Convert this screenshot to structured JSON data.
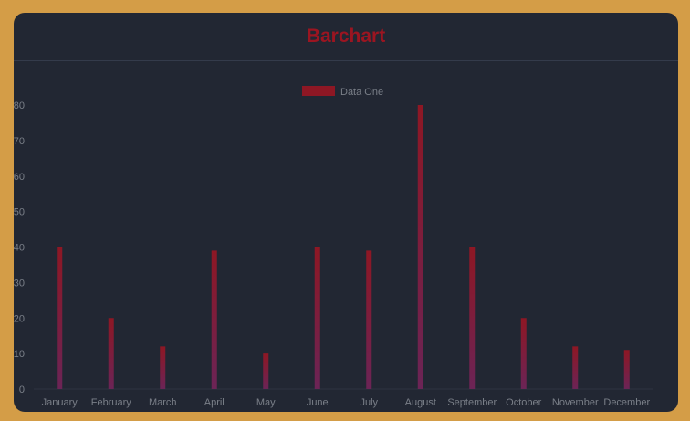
{
  "card": {
    "title": "Barchart"
  },
  "colors": {
    "background": "#d49d47",
    "card": "#222733",
    "title": "#9b1521",
    "bar_top": "#8e1724",
    "bar_bottom": "#6b2456",
    "axis_text": "#7a7f88"
  },
  "chart_data": {
    "type": "bar",
    "categories": [
      "January",
      "February",
      "March",
      "April",
      "May",
      "June",
      "July",
      "August",
      "September",
      "October",
      "November",
      "December"
    ],
    "series": [
      {
        "name": "Data One",
        "values": [
          40,
          20,
          12,
          39,
          10,
          40,
          39,
          80,
          40,
          20,
          12,
          11
        ]
      }
    ],
    "title": "",
    "xlabel": "",
    "ylabel": "",
    "ylim": [
      0,
      80
    ],
    "yticks": [
      0,
      10,
      20,
      30,
      40,
      50,
      60,
      70,
      80
    ],
    "grid": false,
    "legend": "top-center"
  }
}
